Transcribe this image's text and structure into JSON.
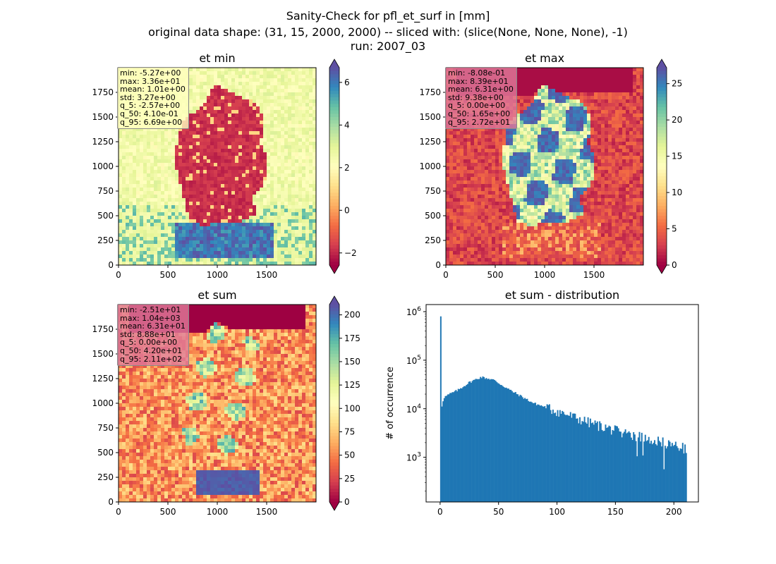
{
  "figure": {
    "title_lines": [
      "Sanity-Check for pfl_et_surf in [mm]",
      "original data shape: (31, 15, 2000, 2000) -- sliced with: (slice(None, None, None), -1)",
      "run: 2007_03"
    ]
  },
  "colormap": {
    "name": "Spectral",
    "stops": [
      "#9e0142",
      "#d53e4f",
      "#f46d43",
      "#fdae61",
      "#fee08b",
      "#ffffbf",
      "#e6f598",
      "#abdda4",
      "#66c2a5",
      "#3288bd",
      "#5e4fa2"
    ]
  },
  "chart_data": [
    {
      "type": "heatmap",
      "title": "et min",
      "xticks": [
        0,
        500,
        1000,
        1500
      ],
      "yticks": [
        0,
        250,
        500,
        750,
        1000,
        1250,
        1500,
        1750
      ],
      "xlim": [
        0,
        2000
      ],
      "ylim": [
        0,
        2000
      ],
      "colorbar": {
        "range": [
          -2.57,
          6.69
        ],
        "ticks": [
          -2,
          0,
          2,
          4,
          6
        ],
        "tick_labels": [
          "−2",
          "0",
          "2",
          "4",
          "6"
        ],
        "extend": "both"
      },
      "stats": [
        "min: -5.27e+00",
        "max: 3.36e+01",
        "mean: 1.01e+00",
        "std: 3.27e+00",
        "q_5: -2.57e+00",
        "q_50: 4.10e-01",
        "q_95: 6.69e+00"
      ],
      "stats_box_color": "#ffffbf"
    },
    {
      "type": "heatmap",
      "title": "et max",
      "xticks": [
        0,
        500,
        1000,
        1500
      ],
      "yticks": [
        0,
        250,
        500,
        750,
        1000,
        1250,
        1500,
        1750
      ],
      "xlim": [
        0,
        2000
      ],
      "ylim": [
        0,
        2000
      ],
      "colorbar": {
        "range": [
          0,
          27.2
        ],
        "ticks": [
          0,
          5,
          10,
          15,
          20,
          25
        ],
        "tick_labels": [
          "0",
          "5",
          "10",
          "15",
          "20",
          "25"
        ],
        "extend": "both"
      },
      "stats": [
        "min: -8.08e-01",
        "max: 8.39e+01",
        "mean: 6.31e+00",
        "std: 9.38e+00",
        "q_5: 0.00e+00",
        "q_50: 1.65e+00",
        "q_95: 2.72e+01"
      ],
      "stats_box_color": "#e07a9a"
    },
    {
      "type": "heatmap",
      "title": "et sum",
      "xticks": [
        0,
        500,
        1000,
        1500
      ],
      "yticks": [
        0,
        250,
        500,
        750,
        1000,
        1250,
        1500,
        1750
      ],
      "xlim": [
        0,
        2000
      ],
      "ylim": [
        0,
        2000
      ],
      "colorbar": {
        "range": [
          0,
          211
        ],
        "ticks": [
          0,
          25,
          50,
          75,
          100,
          125,
          150,
          175,
          200
        ],
        "tick_labels": [
          "0",
          "25",
          "50",
          "75",
          "100",
          "125",
          "150",
          "175",
          "200"
        ],
        "extend": "both"
      },
      "stats": [
        "min: -2.51e+01",
        "max: 1.04e+03",
        "mean: 6.31e+01",
        "std: 8.88e+01",
        "q_5: 0.00e+00",
        "q_50: 4.20e+01",
        "q_95: 2.11e+02"
      ],
      "stats_box_color": "#e07a9a"
    },
    {
      "type": "bar",
      "title": "et sum - distribution",
      "ylabel": "# of occurrence",
      "xlabel": "",
      "yscale": "log",
      "xticks": [
        0,
        50,
        100,
        150,
        200
      ],
      "ytick_labels": [
        {
          "base": "10",
          "exp": "6",
          "value": 1000000
        },
        {
          "base": "10",
          "exp": "5",
          "value": 100000
        },
        {
          "base": "10",
          "exp": "4",
          "value": 10000
        },
        {
          "base": "10",
          "exp": "3",
          "value": 1000
        }
      ],
      "xlim": [
        -12,
        221
      ],
      "ylim": [
        120,
        1400000
      ],
      "bar_color": "#1f77b4",
      "bins": {
        "start": 0,
        "end": 211,
        "width": 1
      },
      "spike": {
        "x": 0,
        "value": 800000
      },
      "profile": [
        {
          "x": 1,
          "value": 10000
        },
        {
          "x": 3,
          "value": 17000
        },
        {
          "x": 8,
          "value": 20000
        },
        {
          "x": 15,
          "value": 24000
        },
        {
          "x": 25,
          "value": 35000
        },
        {
          "x": 35,
          "value": 45000
        },
        {
          "x": 45,
          "value": 40000
        },
        {
          "x": 60,
          "value": 24000
        },
        {
          "x": 80,
          "value": 13000
        },
        {
          "x": 100,
          "value": 9000
        },
        {
          "x": 125,
          "value": 5500
        },
        {
          "x": 150,
          "value": 3600
        },
        {
          "x": 175,
          "value": 2600
        },
        {
          "x": 200,
          "value": 1800
        },
        {
          "x": 211,
          "value": 1500
        }
      ]
    }
  ]
}
